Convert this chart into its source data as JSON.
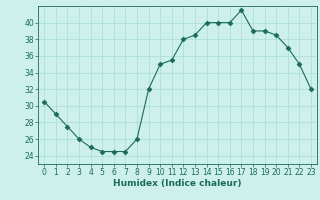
{
  "x": [
    0,
    1,
    2,
    3,
    4,
    5,
    6,
    7,
    8,
    9,
    10,
    11,
    12,
    13,
    14,
    15,
    16,
    17,
    18,
    19,
    20,
    21,
    22,
    23
  ],
  "y": [
    30.5,
    29,
    27.5,
    26,
    25,
    24.5,
    24.5,
    24.5,
    26,
    32,
    35,
    35.5,
    38,
    38.5,
    40,
    40,
    40,
    41.5,
    39,
    39,
    38.5,
    37,
    35,
    32
  ],
  "line_color": "#1a6b5a",
  "marker": "D",
  "marker_size": 2.5,
  "bg_color": "#cef0ea",
  "grid_color": "#a8ddd6",
  "xlabel": "Humidex (Indice chaleur)",
  "xlim": [
    -0.5,
    23.5
  ],
  "ylim": [
    23,
    42
  ],
  "yticks": [
    24,
    26,
    28,
    30,
    32,
    34,
    36,
    38,
    40
  ],
  "xticks": [
    0,
    1,
    2,
    3,
    4,
    5,
    6,
    7,
    8,
    9,
    10,
    11,
    12,
    13,
    14,
    15,
    16,
    17,
    18,
    19,
    20,
    21,
    22,
    23
  ],
  "label_fontsize": 6.5,
  "tick_fontsize": 5.5
}
